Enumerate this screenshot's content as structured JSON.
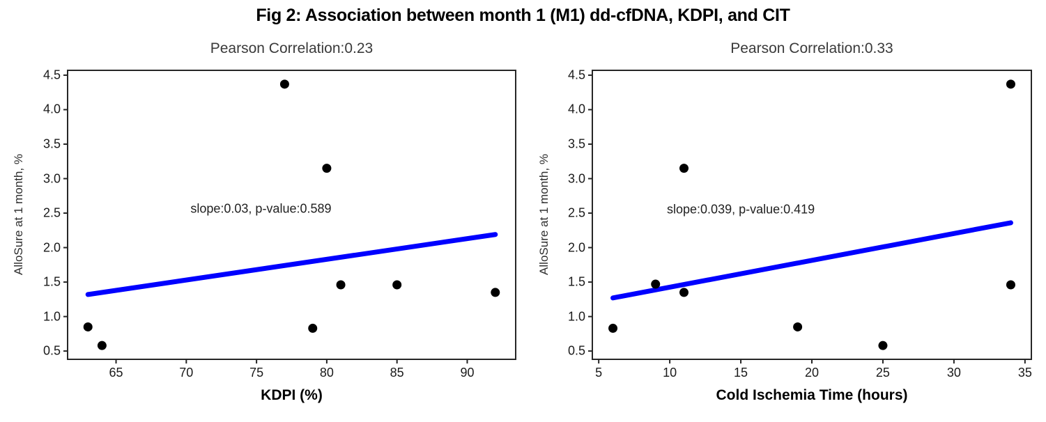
{
  "figure": {
    "title": "Fig 2: Association between month 1 (M1) dd-cfDNA, KDPI, and CIT",
    "background_color": "#ffffff"
  },
  "chart_data": [
    {
      "type": "scatter",
      "title": "Pearson Correlation:0.23",
      "pearson_correlation": 0.23,
      "xlabel": "KDPI (%)",
      "ylabel": "AlloSure at 1 month, %",
      "annotation": {
        "text": "slope:0.03, p-value:0.589",
        "x": 70.3,
        "y": 2.56
      },
      "slope": 0.03,
      "p_value": 0.589,
      "points": {
        "x": [
          63,
          64,
          77,
          79,
          80,
          81,
          85,
          92
        ],
        "y": [
          0.85,
          0.58,
          4.37,
          0.83,
          3.15,
          1.46,
          1.46,
          1.35
        ]
      },
      "fit_line": {
        "x": [
          63,
          92
        ],
        "y": [
          1.32,
          2.19
        ]
      },
      "xlim": [
        61.6,
        93.4
      ],
      "ylim": [
        0.39,
        4.56
      ],
      "xticks": [
        65,
        70,
        75,
        80,
        85,
        90
      ],
      "yticks": [
        0.5,
        1.0,
        1.5,
        2.0,
        2.5,
        3.0,
        3.5,
        4.0,
        4.5
      ],
      "point_color": "#000000",
      "line_color": "#0000ff",
      "axis_color": "#262626",
      "grid": false,
      "legend": null
    },
    {
      "type": "scatter",
      "title": "Pearson Correlation:0.33",
      "pearson_correlation": 0.33,
      "xlabel": "Cold Ischemia Time (hours)",
      "ylabel": "AlloSure at 1 month, %",
      "annotation": {
        "text": "slope:0.039, p-value:0.419",
        "x": 9.8,
        "y": 2.55
      },
      "slope": 0.039,
      "p_value": 0.419,
      "points": {
        "x": [
          6,
          9,
          11,
          11,
          19,
          25,
          34,
          34
        ],
        "y": [
          0.83,
          1.47,
          3.15,
          1.35,
          0.85,
          0.58,
          4.37,
          1.46
        ]
      },
      "fit_line": {
        "x": [
          6,
          34
        ],
        "y": [
          1.27,
          2.36
        ]
      },
      "xlim": [
        4.6,
        35.4
      ],
      "ylim": [
        0.39,
        4.56
      ],
      "xticks": [
        5,
        10,
        15,
        20,
        25,
        30,
        35
      ],
      "yticks": [
        0.5,
        1.0,
        1.5,
        2.0,
        2.5,
        3.0,
        3.5,
        4.0,
        4.5
      ],
      "point_color": "#000000",
      "line_color": "#0000ff",
      "axis_color": "#262626",
      "grid": false,
      "legend": null
    }
  ]
}
